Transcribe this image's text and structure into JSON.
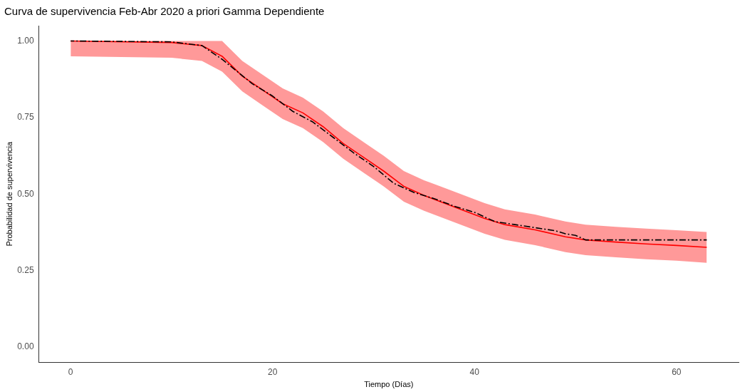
{
  "chart_data": {
    "type": "line",
    "title": "Curva de supervivencia Feb-Abr 2020 a priori Gamma Dependiente",
    "xlabel": "Tiempo (Días)",
    "ylabel": "Probabilidad de supervivencia",
    "x": [
      0,
      10,
      13,
      15,
      17,
      19,
      21,
      23,
      25,
      27,
      29,
      31,
      33,
      35,
      37,
      39,
      41,
      43,
      46,
      49,
      51,
      54,
      57,
      60,
      63
    ],
    "series": [
      {
        "color": "#ff0000",
        "line_style": "solid",
        "values": [
          1,
          0.995,
          0.985,
          0.95,
          0.885,
          0.84,
          0.795,
          0.765,
          0.72,
          0.665,
          0.62,
          0.575,
          0.525,
          0.495,
          0.47,
          0.445,
          0.42,
          0.4,
          0.383,
          0.36,
          0.35,
          0.343,
          0.337,
          0.332,
          0.326
        ],
        "lower": [
          0.95,
          0.945,
          0.935,
          0.9,
          0.835,
          0.79,
          0.745,
          0.715,
          0.67,
          0.615,
          0.57,
          0.525,
          0.475,
          0.445,
          0.42,
          0.395,
          0.37,
          0.35,
          0.333,
          0.31,
          0.3,
          0.293,
          0.287,
          0.282,
          0.275
        ],
        "upper": [
          1,
          1,
          1,
          1,
          0.935,
          0.89,
          0.845,
          0.815,
          0.77,
          0.715,
          0.67,
          0.625,
          0.575,
          0.545,
          0.52,
          0.495,
          0.47,
          0.45,
          0.433,
          0.41,
          0.4,
          0.393,
          0.387,
          0.382,
          0.376
        ]
      },
      {
        "color": "#000000",
        "line_style": "dashdot",
        "x": [
          0,
          10,
          13,
          15,
          16.5,
          18,
          20,
          22,
          24,
          26,
          28,
          30,
          32,
          34,
          36,
          38,
          40,
          42,
          44,
          46,
          48,
          49,
          50,
          51,
          63
        ],
        "values": [
          1,
          0.997,
          0.985,
          0.94,
          0.9,
          0.86,
          0.82,
          0.77,
          0.735,
          0.685,
          0.635,
          0.59,
          0.535,
          0.505,
          0.485,
          0.46,
          0.44,
          0.41,
          0.4,
          0.39,
          0.38,
          0.37,
          0.365,
          0.35,
          0.35
        ]
      }
    ],
    "xlim": [
      -3.15,
      66.15
    ],
    "xticks": [
      0,
      20,
      40,
      60
    ],
    "ylim": [
      -0.05,
      1.05
    ],
    "yticks": [
      {
        "value": 0,
        "label": "0.00"
      },
      {
        "value": 0.25,
        "label": "0.25"
      },
      {
        "value": 0.5,
        "label": "0.50"
      },
      {
        "value": 0.75,
        "label": "0.75"
      },
      {
        "value": 1,
        "label": "1.00"
      }
    ],
    "grid": false,
    "legend": false,
    "marker": "none"
  }
}
